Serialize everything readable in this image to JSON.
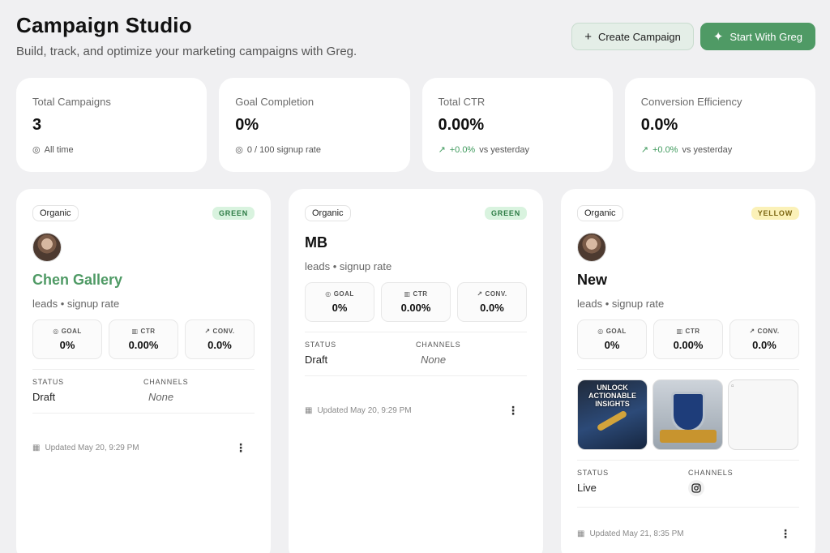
{
  "header": {
    "title": "Campaign Studio",
    "subtitle": "Build, track, and optimize your marketing campaigns with Greg.",
    "create_label": "Create Campaign",
    "start_label": "Start With Greg"
  },
  "stats": [
    {
      "label": "Total Campaigns",
      "value": "3",
      "sub": "All time",
      "trend": ""
    },
    {
      "label": "Goal Completion",
      "value": "0%",
      "sub": "0 / 100 signup rate",
      "trend": ""
    },
    {
      "label": "Total CTR",
      "value": "0.00%",
      "sub": "vs yesterday",
      "trend": "+0.0%"
    },
    {
      "label": "Conversion Efficiency",
      "value": "0.0%",
      "sub": "vs yesterday",
      "trend": "+0.0%"
    }
  ],
  "metric_labels": {
    "goal": "GOAL",
    "ctr": "CTR",
    "conv": "CONV."
  },
  "col_labels": {
    "status": "STATUS",
    "channels": "CHANNELS"
  },
  "campaigns": [
    {
      "tag": "Organic",
      "badge": "GREEN",
      "name": "Chen Gallery",
      "meta": "leads • signup rate",
      "goal": "0%",
      "ctr": "0.00%",
      "conv": "0.0%",
      "status": "Draft",
      "channels": "None",
      "updated": "Updated May 20, 9:29 PM"
    },
    {
      "tag": "Organic",
      "badge": "GREEN",
      "name": "MB",
      "meta": "leads • signup rate",
      "goal": "0%",
      "ctr": "0.00%",
      "conv": "0.0%",
      "status": "Draft",
      "channels": "None",
      "updated": "Updated May 20, 9:29 PM"
    },
    {
      "tag": "Organic",
      "badge": "YELLOW",
      "name": "New",
      "meta": "leads • signup rate",
      "goal": "0%",
      "ctr": "0.00%",
      "conv": "0.0%",
      "status": "Live",
      "channels": "",
      "updated": "Updated May 21, 8:35 PM",
      "thumb_text": "UNLOCK ACTIONABLE INSIGHTS"
    }
  ],
  "colors": {
    "accent": "#4f9a65",
    "green_badge_bg": "#d9f3df",
    "yellow_badge_bg": "#fbf1b8"
  }
}
